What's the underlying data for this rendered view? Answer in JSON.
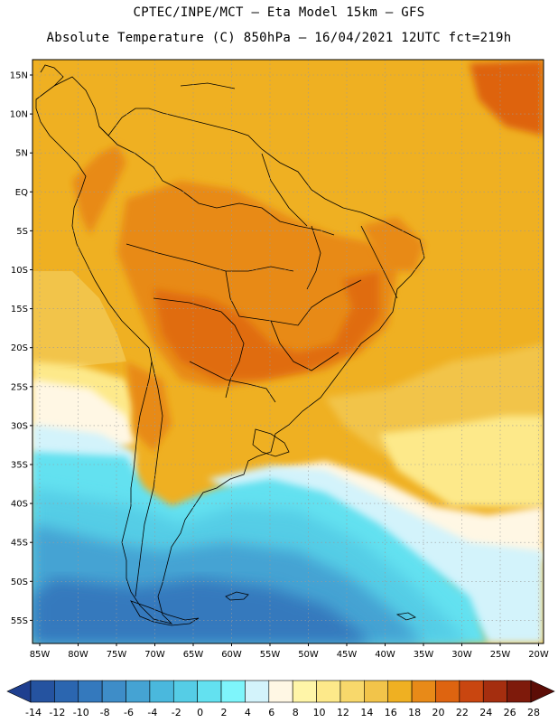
{
  "header": {
    "line1": "CPTEC/INPE/MCT –  Eta Model 15km – GFS",
    "line2": "Absolute Temperature (C) 850hPa – 16/04/2021 12UTC fct=219h"
  },
  "map": {
    "lat_labels": [
      "15N",
      "10N",
      "5N",
      "EQ",
      "5S",
      "10S",
      "15S",
      "20S",
      "25S",
      "30S",
      "35S",
      "40S",
      "45S",
      "50S",
      "55S"
    ],
    "lon_labels": [
      "85W",
      "80W",
      "75W",
      "70W",
      "65W",
      "60W",
      "55W",
      "50W",
      "45W",
      "40W",
      "35W",
      "30W",
      "25W",
      "20W"
    ]
  },
  "colorbar": {
    "labels": [
      "-14",
      "-12",
      "-10",
      "-8",
      "-6",
      "-4",
      "-2",
      "0",
      "2",
      "4",
      "6",
      "8",
      "10",
      "12",
      "14",
      "16",
      "18",
      "20",
      "22",
      "24",
      "26",
      "28"
    ],
    "colors": [
      "#1f3f8f",
      "#2553a0",
      "#2b66b0",
      "#3479bd",
      "#3e8dc8",
      "#45a3d3",
      "#4ab8dd",
      "#55cde6",
      "#63e1f0",
      "#7ef5fb",
      "#d3f3fb",
      "#fff7e4",
      "#fff5a8",
      "#fde98a",
      "#f8d86b",
      "#f2c44a",
      "#efb022",
      "#e88a18",
      "#de6410",
      "#c94610",
      "#a52e0f",
      "#7e1a0b",
      "#5c0d06"
    ]
  }
}
